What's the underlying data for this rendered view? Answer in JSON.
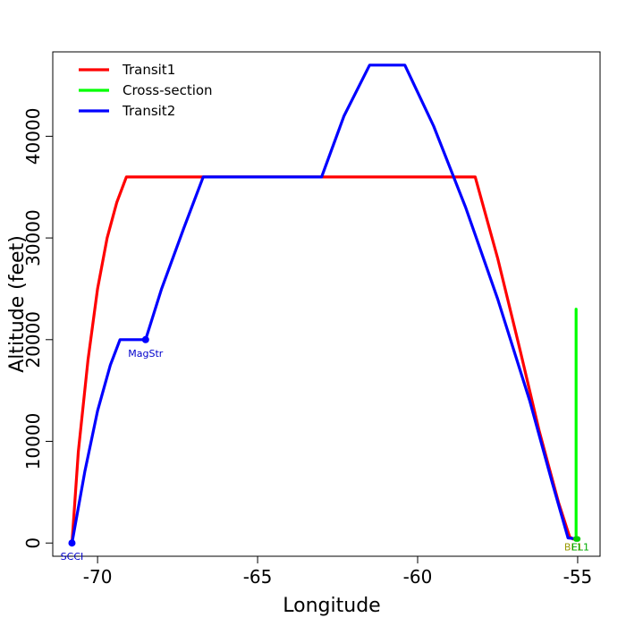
{
  "chart_data": {
    "type": "line",
    "xlabel": "Longitude",
    "ylabel": "Altitude (feet)",
    "xlim": [
      -71.4,
      -54.3
    ],
    "ylim": [
      -1300,
      48300
    ],
    "xticks": [
      -70,
      -65,
      -60,
      -55
    ],
    "yticks": [
      0,
      10000,
      20000,
      30000,
      40000
    ],
    "grid": false,
    "legend_position": "top-left",
    "series": [
      {
        "name": "Transit1",
        "color": "#ff0000",
        "x": [
          -70.8,
          -70.6,
          -70.3,
          -70.0,
          -69.7,
          -69.4,
          -69.1,
          -68.0,
          -65.0,
          -62.0,
          -60.0,
          -58.2,
          -57.5,
          -56.8,
          -56.2,
          -55.6,
          -55.25,
          -55.15
        ],
        "y": [
          0,
          9000,
          18000,
          25000,
          30000,
          33500,
          36000,
          36000,
          36000,
          36000,
          36000,
          36000,
          28000,
          19000,
          11000,
          4000,
          600,
          400
        ]
      },
      {
        "name": "Cross-section",
        "color": "#00ff00",
        "x": [
          -55.05,
          -55.05,
          -55.1,
          -55.0
        ],
        "y": [
          23000,
          400,
          400,
          400
        ]
      },
      {
        "name": "Transit2",
        "color": "#0000ff",
        "x": [
          -70.8,
          -70.4,
          -70.0,
          -69.6,
          -69.3,
          -68.5,
          -68.0,
          -67.3,
          -66.7,
          -63.0,
          -62.3,
          -61.5,
          -60.4,
          -59.5,
          -58.5,
          -57.5,
          -56.5,
          -55.8,
          -55.3,
          -55.0
        ],
        "y": [
          0,
          7000,
          13000,
          17500,
          20000,
          20000,
          25000,
          31000,
          36000,
          36000,
          42000,
          47000,
          47000,
          41000,
          33000,
          24000,
          14000,
          6000,
          500,
          400
        ]
      }
    ],
    "points": [
      {
        "label": "SCCI",
        "x": -70.8,
        "y": 0,
        "color": "#0000ff",
        "label_color": "#0000cc"
      },
      {
        "label": "MagStr",
        "x": -68.5,
        "y": 20000,
        "color": "#0000ff",
        "label_color": "#0000cc"
      }
    ],
    "end_labels": [
      {
        "label": "BL1",
        "x": -55.05,
        "y": 400,
        "color": "#00cc00",
        "label_color": "#999900"
      },
      {
        "label": "EL1",
        "x": -55.0,
        "y": 400,
        "color": "#00cc00",
        "label_color": "#00aa00"
      }
    ]
  }
}
